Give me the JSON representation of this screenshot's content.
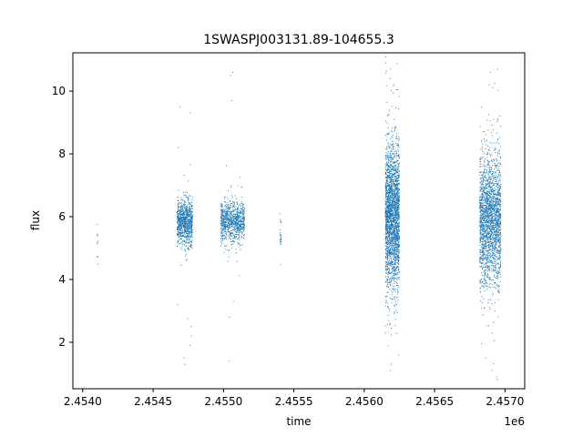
{
  "chart_data": {
    "type": "scatter",
    "title": "1SWASPJ003131.89-104655.3",
    "xlabel": "time",
    "ylabel": "flux",
    "x_offset_label": "1e6",
    "xlim": [
      2.45393,
      2.45714
    ],
    "ylim": [
      0.52,
      11.22
    ],
    "x_ticks": [
      2.454,
      2.4545,
      2.455,
      2.4555,
      2.456,
      2.4565,
      2.457
    ],
    "x_tick_labels": [
      "2.4540",
      "2.4545",
      "2.4550",
      "2.4555",
      "2.4560",
      "2.4565",
      "2.4570"
    ],
    "y_ticks": [
      2,
      4,
      6,
      8,
      10
    ],
    "y_tick_labels": [
      "2",
      "4",
      "6",
      "8",
      "10"
    ],
    "grid": false,
    "point_color": "#1f77b4",
    "clusters": [
      {
        "x_range": [
          2.4541,
          2.45411
        ],
        "y_center": 5.2,
        "y_spread": 0.45,
        "points": 10
      },
      {
        "x_range": [
          2.45467,
          2.45478
        ],
        "y_center": 5.8,
        "y_spread": 0.35,
        "points": 900,
        "outliers": [
          1.3,
          1.5,
          1.9,
          2.2,
          2.5,
          3.2,
          8.2,
          9.3,
          9.5
        ]
      },
      {
        "x_range": [
          2.45498,
          2.45515
        ],
        "y_center": 5.85,
        "y_spread": 0.3,
        "points": 900,
        "outliers": [
          1.4,
          2.8,
          3.3,
          9.7,
          10.5,
          10.6
        ]
      },
      {
        "x_range": [
          2.4554,
          2.45541
        ],
        "y_center": 5.4,
        "y_spread": 0.4,
        "points": 25
      },
      {
        "x_range": [
          2.45615,
          2.45625
        ],
        "y_center": 6.0,
        "y_spread": 1.1,
        "points": 2500,
        "outliers": [
          1.1,
          1.3,
          1.6,
          10.4,
          10.7
        ]
      },
      {
        "x_range": [
          2.45682,
          2.45697
        ],
        "y_center": 5.9,
        "y_spread": 1.0,
        "points": 2200,
        "outliers": [
          0.9,
          1.1,
          1.5,
          10.2,
          10.6,
          10.7
        ]
      }
    ]
  }
}
